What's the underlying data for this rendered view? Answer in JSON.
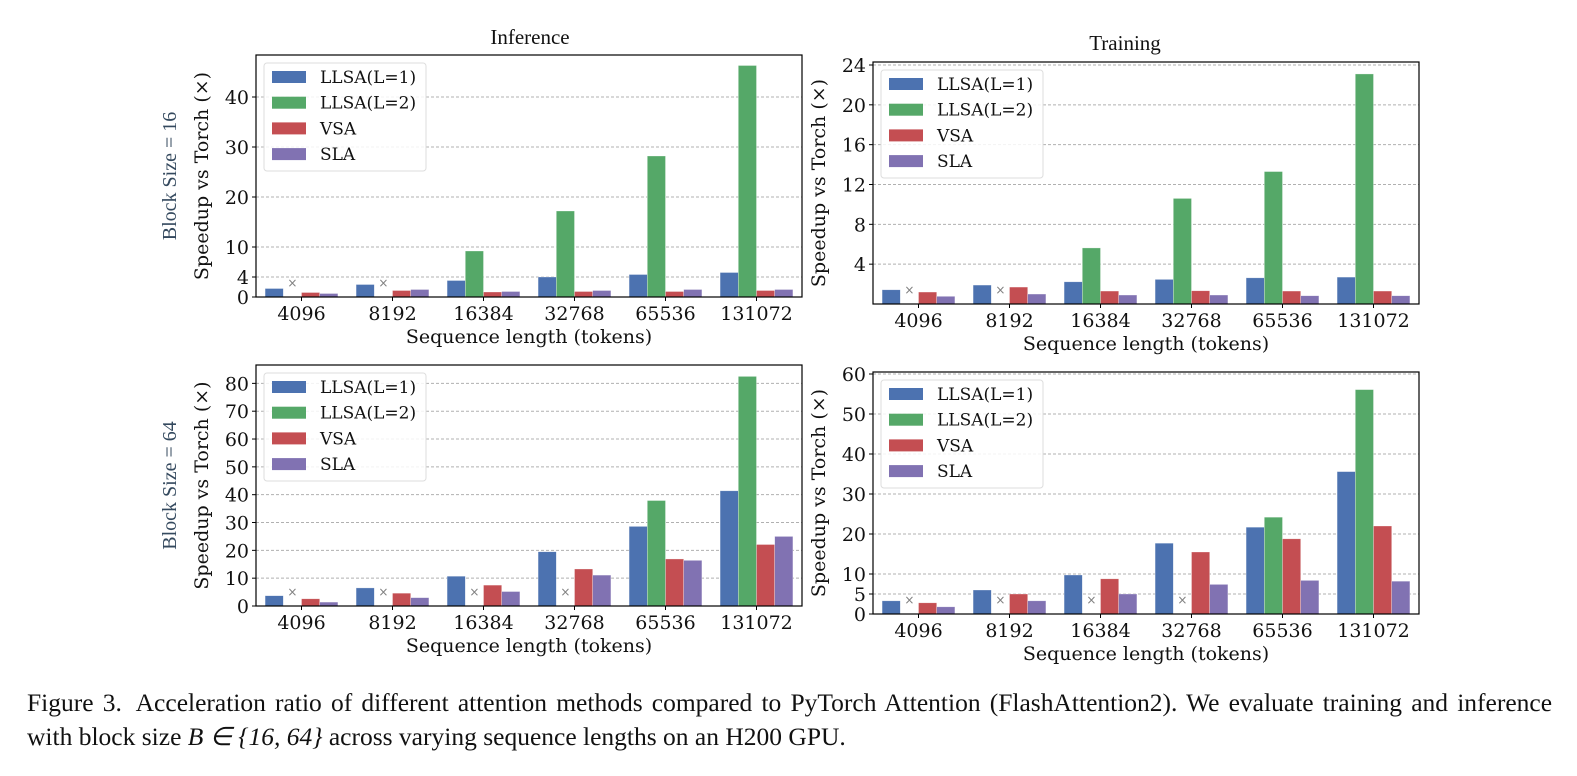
{
  "caption": {
    "label": "Figure 3.",
    "text_line1": "Acceleration ratio of different attention methods compared to PyTorch Attention (FlashAttention2). We evaluate training and",
    "text_line2_pre": "inference with block size",
    "math": "B ∈ {16, 64}",
    "text_line2_post": "across varying sequence lengths on an H200 GPU."
  },
  "columns": [
    "Inference",
    "Training"
  ],
  "rows": [
    "Block Size = 16",
    "Block Size = 64"
  ],
  "colors": {
    "LLSA(L=1)": "#4c72b0",
    "LLSA(L=2)": "#55a868",
    "VSA": "#c44e52",
    "SLA": "#8172b2",
    "row_label": "#34495e",
    "grid": "#b0b0b0",
    "missing_marker": "#808080"
  },
  "missing_marker": "×",
  "chart_data": [
    {
      "type": "bar",
      "title": "Inference",
      "row_label": "Block Size = 16",
      "xlabel": "Sequence length (tokens)",
      "ylabel": "Speedup vs Torch (×)",
      "categories": [
        "4096",
        "8192",
        "16384",
        "32768",
        "65536",
        "131072"
      ],
      "yticks": [
        0,
        4,
        10,
        20,
        30,
        40
      ],
      "ylim": [
        0,
        48.4
      ],
      "grid": true,
      "legend": "upper-left",
      "series": [
        {
          "name": "LLSA(L=1)",
          "values": [
            1.7,
            2.5,
            3.3,
            4.0,
            4.5,
            4.9
          ]
        },
        {
          "name": "LLSA(L=2)",
          "values": [
            null,
            null,
            9.2,
            17.2,
            28.2,
            46.3
          ]
        },
        {
          "name": "VSA",
          "values": [
            0.9,
            1.3,
            1.0,
            1.1,
            1.1,
            1.3
          ]
        },
        {
          "name": "SLA",
          "values": [
            0.7,
            1.5,
            1.1,
            1.3,
            1.5,
            1.5
          ]
        }
      ]
    },
    {
      "type": "bar",
      "title": "Training",
      "row_label": "",
      "xlabel": "Sequence length (tokens)",
      "ylabel": "Speedup vs Torch (×)",
      "categories": [
        "4096",
        "8192",
        "16384",
        "32768",
        "65536",
        "131072"
      ],
      "yticks": [
        4,
        8,
        12,
        16,
        20,
        24
      ],
      "ylim": [
        0,
        24.3
      ],
      "grid": true,
      "legend": "upper-left",
      "series": [
        {
          "name": "LLSA(L=1)",
          "values": [
            1.43,
            1.9,
            2.23,
            2.47,
            2.63,
            2.7
          ]
        },
        {
          "name": "LLSA(L=2)",
          "values": [
            null,
            null,
            5.63,
            10.6,
            13.3,
            23.1
          ]
        },
        {
          "name": "VSA",
          "values": [
            1.2,
            1.7,
            1.3,
            1.33,
            1.3,
            1.3
          ]
        },
        {
          "name": "SLA",
          "values": [
            0.77,
            1.0,
            0.9,
            0.9,
            0.83,
            0.83
          ]
        }
      ]
    },
    {
      "type": "bar",
      "title": "",
      "row_label": "Block Size = 64",
      "xlabel": "Sequence length (tokens)",
      "ylabel": "Speedup vs Torch (×)",
      "categories": [
        "4096",
        "8192",
        "16384",
        "32768",
        "65536",
        "131072"
      ],
      "yticks": [
        0,
        10,
        20,
        30,
        40,
        50,
        60,
        70,
        80
      ],
      "ylim": [
        0,
        86.6
      ],
      "grid": true,
      "legend": "upper-left",
      "series": [
        {
          "name": "LLSA(L=1)",
          "values": [
            3.7,
            6.5,
            10.7,
            19.5,
            28.6,
            41.4
          ]
        },
        {
          "name": "LLSA(L=2)",
          "values": [
            null,
            null,
            null,
            null,
            37.9,
            82.5
          ]
        },
        {
          "name": "VSA",
          "values": [
            2.6,
            4.6,
            7.5,
            13.3,
            16.9,
            22.1
          ]
        },
        {
          "name": "SLA",
          "values": [
            1.4,
            3.0,
            5.2,
            11.1,
            16.4,
            25.0
          ]
        }
      ]
    },
    {
      "type": "bar",
      "title": "",
      "row_label": "",
      "xlabel": "Sequence length (tokens)",
      "ylabel": "Speedup vs Torch (×)",
      "categories": [
        "4096",
        "8192",
        "16384",
        "32768",
        "65536",
        "131072"
      ],
      "yticks": [
        0,
        5,
        10,
        20,
        30,
        40,
        50,
        60
      ],
      "ylim": [
        0,
        60.5
      ],
      "grid": true,
      "legend": "upper-left",
      "series": [
        {
          "name": "LLSA(L=1)",
          "values": [
            3.3,
            6.0,
            9.75,
            17.7,
            21.7,
            35.6
          ]
        },
        {
          "name": "LLSA(L=2)",
          "values": [
            null,
            null,
            null,
            null,
            24.2,
            56.1
          ]
        },
        {
          "name": "VSA",
          "values": [
            2.8,
            5.0,
            8.8,
            15.5,
            18.8,
            22.0
          ]
        },
        {
          "name": "SLA",
          "values": [
            1.8,
            3.3,
            5.0,
            7.4,
            8.4,
            8.2
          ]
        }
      ]
    }
  ]
}
